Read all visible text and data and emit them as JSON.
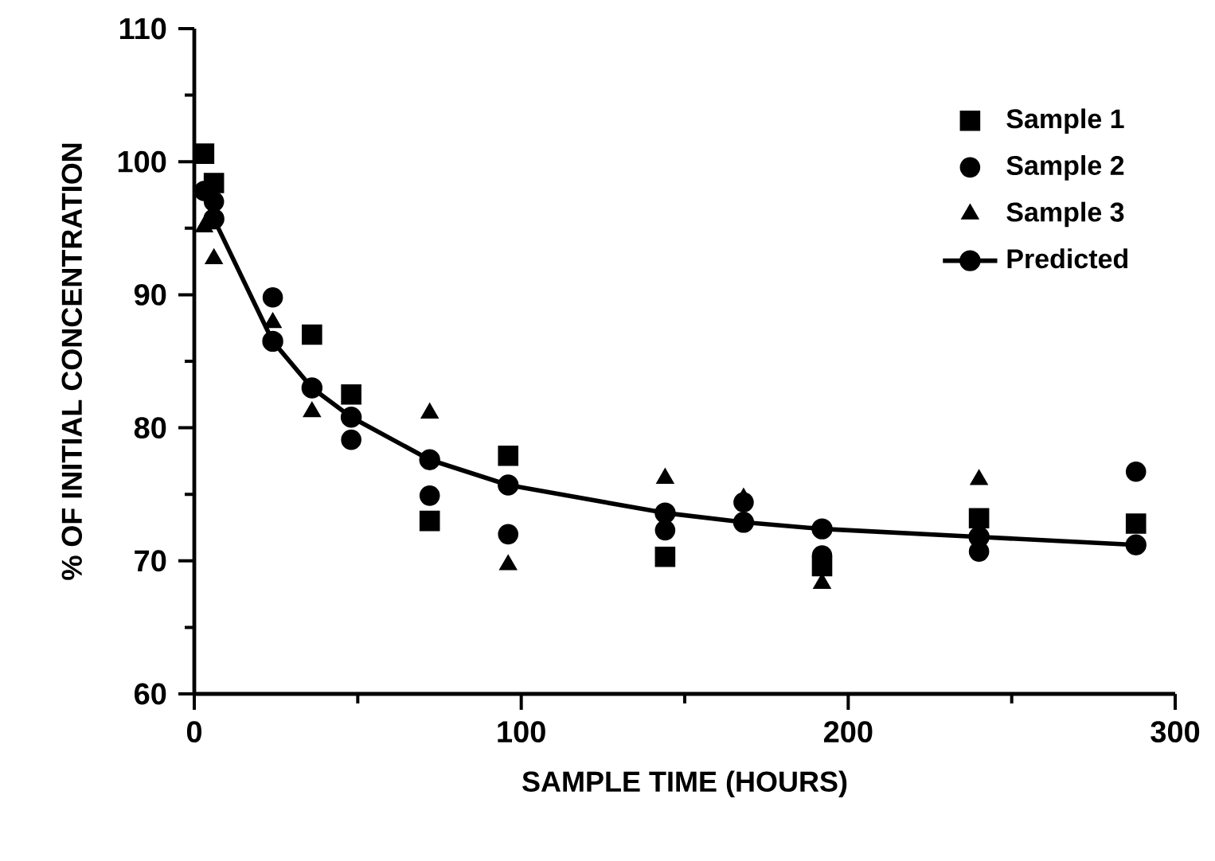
{
  "chart_data": {
    "type": "scatter",
    "xlabel": "SAMPLE TIME (HOURS)",
    "ylabel": "% OF INITIAL CONCENTRATION",
    "x": [
      3,
      6,
      24,
      36,
      48,
      72,
      96,
      144,
      168,
      192,
      240,
      288
    ],
    "xlim": [
      0,
      300
    ],
    "xticks": [
      0,
      100,
      200,
      300
    ],
    "ylim": [
      60,
      110
    ],
    "yticks": [
      60,
      70,
      80,
      90,
      100,
      110
    ],
    "grid": false,
    "legend": "top right",
    "series": [
      {
        "name": "Sample 1",
        "color": "#000000",
        "marker": "square",
        "values": [
          100.6,
          98.4,
          null,
          87.0,
          82.5,
          73.0,
          77.9,
          70.3,
          null,
          69.6,
          73.2,
          72.8
        ]
      },
      {
        "name": "Sample 2",
        "color": "#000000",
        "marker": "circle",
        "values": [
          97.8,
          97.0,
          89.8,
          null,
          79.1,
          74.9,
          72.0,
          72.3,
          74.4,
          70.4,
          70.7,
          76.7
        ]
      },
      {
        "name": "Sample 3",
        "color": "#000000",
        "marker": "triangle",
        "values": [
          95.1,
          92.7,
          87.9,
          81.2,
          null,
          81.1,
          69.7,
          76.2,
          74.7,
          68.3,
          76.1,
          null
        ]
      },
      {
        "name": "Predicted",
        "type": "line",
        "line_style": "solid",
        "color": "#000000",
        "marker": "circle",
        "values": [
          null,
          95.7,
          86.5,
          83.0,
          80.8,
          77.6,
          75.7,
          73.6,
          72.9,
          72.4,
          71.8,
          71.2
        ]
      }
    ]
  }
}
